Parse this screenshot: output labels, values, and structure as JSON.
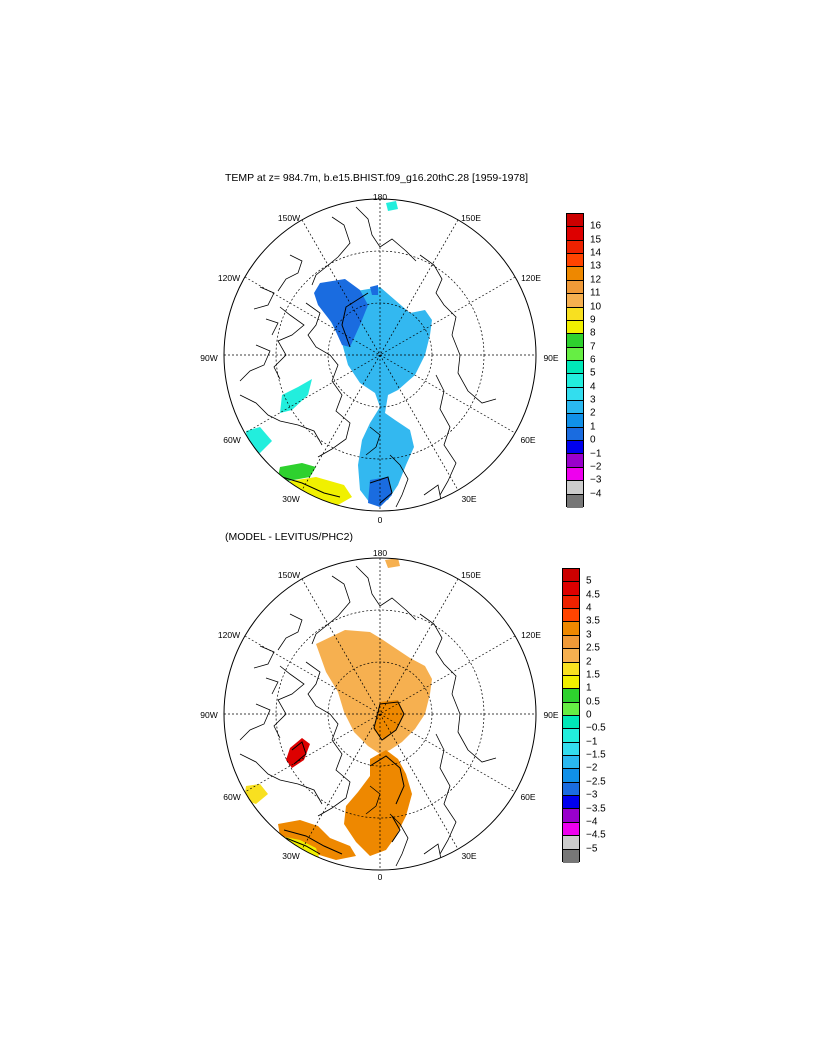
{
  "top": {
    "title": "TEMP at z= 984.7m, b.e15.BHIST.f09_g16.20thC.28 [1959-1978]",
    "longitude_labels": [
      "180",
      "150E",
      "120E",
      "90E",
      "60E",
      "30E",
      "0",
      "30W",
      "60W",
      "90W",
      "120W",
      "150W"
    ],
    "colorbar": {
      "ticks": [
        "16",
        "15",
        "14",
        "13",
        "12",
        "11",
        "10",
        "9",
        "8",
        "7",
        "6",
        "5",
        "4",
        "3",
        "2",
        "1",
        "0",
        "−1",
        "−2",
        "−3",
        "−4"
      ],
      "colors": [
        "#cc0000",
        "#dd0000",
        "#ee2200",
        "#ff4400",
        "#ee8800",
        "#f09a38",
        "#f6b050",
        "#f8e020",
        "#f0f000",
        "#2ed12e",
        "#66ee44",
        "#00e8b8",
        "#22eedd",
        "#33ddee",
        "#2ab8f0",
        "#1090e8",
        "#1a6ce0",
        "#0000ee",
        "#9900cc",
        "#ee00ee",
        "#cccccc",
        "#777777"
      ]
    }
  },
  "bottom": {
    "title": "(MODEL - LEVITUS/PHC2)",
    "longitude_labels": [
      "180",
      "150E",
      "120E",
      "90E",
      "60E",
      "30E",
      "0",
      "30W",
      "60W",
      "90W",
      "120W",
      "150W"
    ],
    "colorbar": {
      "ticks": [
        "5",
        "4.5",
        "4",
        "3.5",
        "3",
        "2.5",
        "2",
        "1.5",
        "1",
        "0.5",
        "0",
        "−0.5",
        "−1",
        "−1.5",
        "−2",
        "−2.5",
        "−3",
        "−3.5",
        "−4",
        "−4.5",
        "−5"
      ],
      "colors": [
        "#cc0000",
        "#dd0000",
        "#ee2200",
        "#ff4400",
        "#ee8800",
        "#f09a38",
        "#f6b050",
        "#f8e020",
        "#f0f000",
        "#2ed12e",
        "#66ee44",
        "#00e8b8",
        "#22eedd",
        "#33ddee",
        "#2ab8f0",
        "#1090e8",
        "#1a6ce0",
        "#0000ee",
        "#9900cc",
        "#ee00ee",
        "#cccccc",
        "#777777"
      ]
    }
  }
}
